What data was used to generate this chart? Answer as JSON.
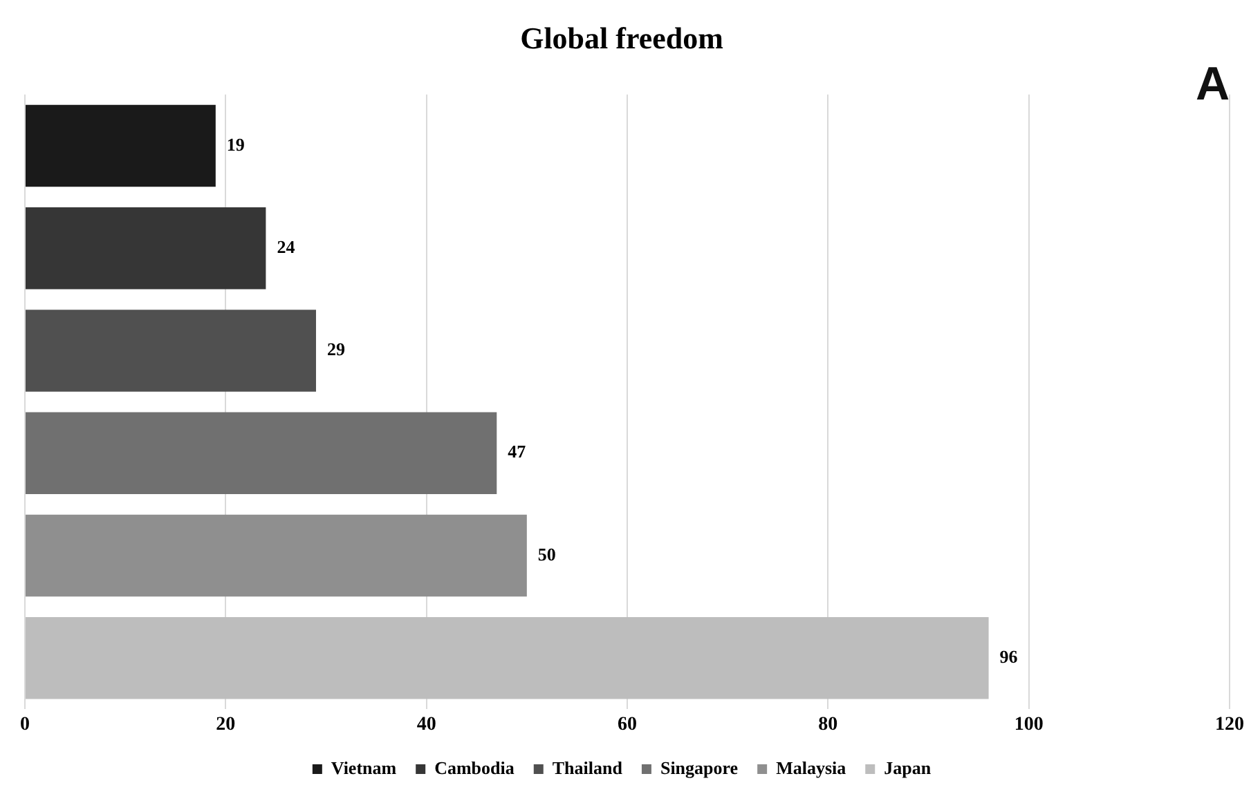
{
  "chart_data": {
    "type": "bar",
    "orientation": "horizontal",
    "title": "Global freedom",
    "categories": [
      null,
      null,
      null,
      null,
      null,
      null
    ],
    "series": [
      {
        "name": "Vietnam",
        "color": "#1a1a1a",
        "values": [
          19,
          null,
          null,
          null,
          null,
          null
        ]
      },
      {
        "name": "Cambodia",
        "color": "#363636",
        "values": [
          null,
          24,
          null,
          null,
          null,
          null
        ]
      },
      {
        "name": "Thailand",
        "color": "#505050",
        "values": [
          null,
          null,
          29,
          null,
          null,
          null
        ]
      },
      {
        "name": "Singapore",
        "color": "#707070",
        "values": [
          null,
          null,
          null,
          47,
          null,
          null
        ]
      },
      {
        "name": "Malaysia",
        "color": "#8f8f8f",
        "values": [
          null,
          null,
          null,
          null,
          50,
          null
        ]
      },
      {
        "name": "Japan",
        "color": "#bdbdbd",
        "values": [
          null,
          null,
          null,
          null,
          null,
          96
        ]
      }
    ],
    "xlim": [
      0,
      120
    ],
    "xticks": [
      0,
      20,
      40,
      60,
      80,
      100,
      120
    ],
    "grid": "x",
    "legend": "bottom",
    "data_labels": true,
    "tick_labels": "x",
    "annotations": [
      "A"
    ]
  }
}
